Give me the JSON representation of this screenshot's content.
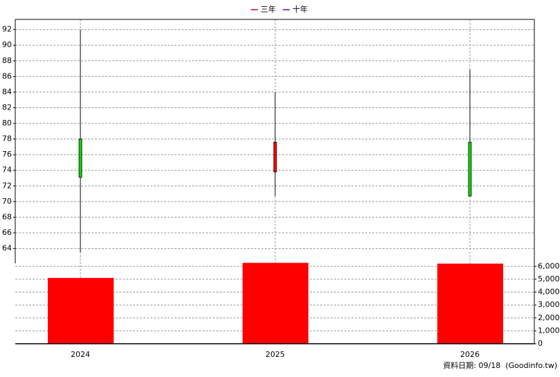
{
  "chart_data": {
    "type": "candlestick",
    "legend": [
      {
        "name": "三年",
        "color": "#cc0033"
      },
      {
        "name": "十年",
        "color": "#6600cc"
      }
    ],
    "categories": [
      "2024",
      "2025",
      "2026"
    ],
    "open": [
      78,
      73.8,
      77.6
    ],
    "high": [
      92,
      84,
      86.9
    ],
    "low": [
      63.5,
      70.7,
      70.7
    ],
    "close": [
      73.1,
      77.6,
      70.7
    ],
    "up_color": "#ff0000",
    "down_color": "#00dd00",
    "ylim": [
      62.1,
      93.3
    ],
    "yticks": [
      64,
      66,
      68,
      70,
      72,
      74,
      76,
      78,
      80,
      82,
      84,
      86,
      88,
      90,
      92
    ],
    "volume": [
      5100,
      6270,
      6210
    ],
    "volume_color": "#ff0000",
    "y2lim": [
      0,
      6500
    ],
    "y2ticks": [
      0,
      {
        "value": 1000,
        "label": "1,000"
      },
      {
        "value": 2000,
        "label": "2,000"
      },
      {
        "value": 3000,
        "label": "3,000"
      },
      {
        "value": 4000,
        "label": "4,000"
      },
      {
        "value": 5000,
        "label": "5,000"
      },
      {
        "value": 6000,
        "label": "6,000"
      }
    ],
    "grid": true,
    "footnote": "資料日期: 09/18  (Goodinfo.tw)"
  }
}
